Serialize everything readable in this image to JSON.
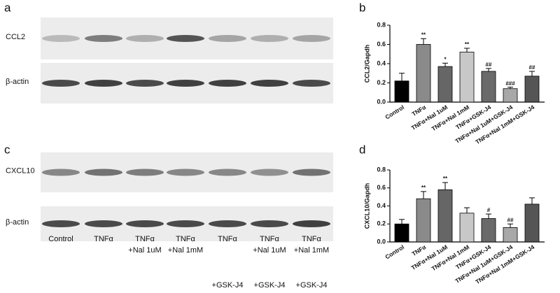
{
  "figure": {
    "panels": [
      {
        "letter": "a",
        "blots": [
          "CCL2",
          "β-actin"
        ]
      },
      {
        "letter": "c",
        "blots": [
          "CXCL10",
          "β-actin"
        ],
        "lanes": [
          [
            "Control"
          ],
          [
            "TNFα"
          ],
          [
            "TNFα",
            "+Nal 1uM"
          ],
          [
            "TNFα",
            "+Nal 1mM"
          ],
          [
            "TNFα",
            "+GSK-J4"
          ],
          [
            "TNFα",
            "+Nal 1uM",
            "+GSK-J4"
          ],
          [
            "TNFα",
            "+Nal 1mM",
            "+GSK-J4"
          ]
        ]
      }
    ]
  },
  "chart_data": [
    {
      "type": "bar",
      "panel": "b",
      "ylabel": "CCL2/Gapdh",
      "categories": [
        "Control",
        "TNFα",
        "TNFα+Nal 1uM",
        "TNFα+Nal 1mM",
        "TNFα+GSK-J4",
        "TNFα+Nal 1uM+GSK-J4",
        "TNFα+Nal 1mM+GSK-J4"
      ],
      "values": [
        0.22,
        0.6,
        0.37,
        0.52,
        0.32,
        0.14,
        0.27
      ],
      "errors": [
        0.08,
        0.06,
        0.035,
        0.04,
        0.03,
        0.015,
        0.05
      ],
      "annotations": [
        null,
        "**",
        "*",
        "**",
        "##",
        "###",
        "##"
      ],
      "colors": [
        "#000000",
        "#8a8a8a",
        "#666666",
        "#c8c8c8",
        "#6a6a6a",
        "#a8a8a8",
        "#555555"
      ],
      "ylim": [
        0,
        0.8
      ],
      "yticks": [
        {
          "value": 0,
          "label": "0.0"
        },
        0.2,
        0.4,
        0.6,
        0.8
      ]
    },
    {
      "type": "bar",
      "panel": "d",
      "ylabel": "CXCL10/Gapdh",
      "categories": [
        "Control",
        "TNFα",
        "TNFα+Nal 1uM",
        "TNFα+Nal 1mM",
        "TNFα+GSK-J4",
        "TNFα+Nal 1uM+GSK-J4",
        "TNFα+Nal 1mM+GSK-J4"
      ],
      "values": [
        0.2,
        0.48,
        0.58,
        0.32,
        0.26,
        0.16,
        0.42
      ],
      "errors": [
        0.05,
        0.08,
        0.08,
        0.06,
        0.05,
        0.04,
        0.07
      ],
      "annotations": [
        null,
        "**",
        "**",
        null,
        "#",
        "##",
        null
      ],
      "colors": [
        "#000000",
        "#8a8a8a",
        "#666666",
        "#c8c8c8",
        "#6a6a6a",
        "#a8a8a8",
        "#555555"
      ],
      "ylim": [
        0,
        0.8
      ],
      "yticks": [
        {
          "value": 0,
          "label": "0.0"
        },
        0.2,
        0.4,
        0.6,
        0.8
      ]
    }
  ]
}
